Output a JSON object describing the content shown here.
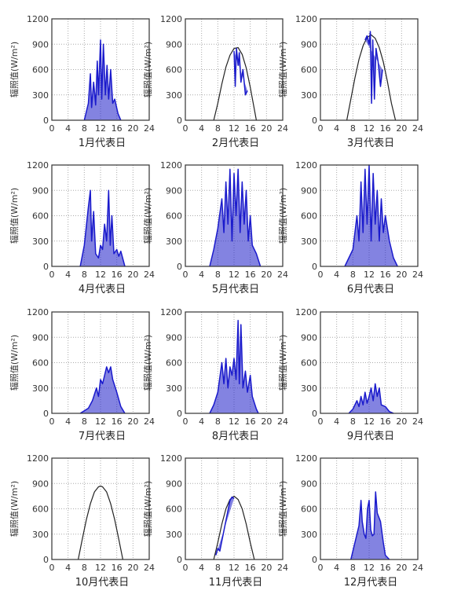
{
  "chart_data": [
    {
      "type": "line",
      "title": "",
      "xlabel": "1月代表日",
      "ylabel": "辐照值(W/m²)",
      "xlim": [
        0,
        24
      ],
      "ylim": [
        0,
        1200
      ],
      "xticks": [
        0,
        4,
        8,
        12,
        16,
        20,
        24
      ],
      "yticks": [
        0,
        300,
        600,
        900,
        1200
      ],
      "grid": true,
      "colors": {
        "measured": "#1a1acc",
        "clear": "#222222"
      },
      "measured": [
        [
          8,
          0
        ],
        [
          9,
          200
        ],
        [
          9.5,
          550
        ],
        [
          9.8,
          150
        ],
        [
          10.3,
          450
        ],
        [
          10.8,
          180
        ],
        [
          11.2,
          700
        ],
        [
          11.5,
          300
        ],
        [
          12,
          950
        ],
        [
          12.3,
          250
        ],
        [
          12.7,
          900
        ],
        [
          13.2,
          300
        ],
        [
          13.6,
          650
        ],
        [
          14,
          250
        ],
        [
          14.5,
          600
        ],
        [
          15,
          200
        ],
        [
          15.5,
          250
        ],
        [
          16.3,
          80
        ],
        [
          17,
          0
        ]
      ],
      "clear": []
    },
    {
      "type": "line",
      "title": "",
      "xlabel": "2月代表日",
      "ylabel": "辐照值(W/m²)",
      "xlim": [
        0,
        24
      ],
      "ylim": [
        0,
        1200
      ],
      "xticks": [
        0,
        4,
        8,
        12,
        16,
        20,
        24
      ],
      "yticks": [
        0,
        300,
        600,
        900,
        1200
      ],
      "grid": true,
      "colors": {
        "measured": "#1a1acc",
        "clear": "#222222"
      },
      "measured": [
        [
          12,
          820
        ],
        [
          12.3,
          400
        ],
        [
          12.6,
          850
        ],
        [
          13,
          650
        ],
        [
          13.3,
          800
        ],
        [
          13.7,
          450
        ],
        [
          14.2,
          600
        ],
        [
          14.8,
          300
        ],
        [
          15.3,
          350
        ]
      ],
      "clear": [
        [
          7,
          0
        ],
        [
          8,
          200
        ],
        [
          9,
          430
        ],
        [
          10,
          630
        ],
        [
          11,
          770
        ],
        [
          12,
          850
        ],
        [
          13,
          860
        ],
        [
          14,
          780
        ],
        [
          15,
          620
        ],
        [
          16,
          390
        ],
        [
          17,
          130
        ],
        [
          17.5,
          0
        ]
      ]
    },
    {
      "type": "line",
      "title": "",
      "xlabel": "3月代表日",
      "ylabel": "辐照值(W/m²)",
      "xlim": [
        0,
        24
      ],
      "ylim": [
        0,
        1200
      ],
      "xticks": [
        0,
        4,
        8,
        12,
        16,
        20,
        24
      ],
      "yticks": [
        0,
        300,
        600,
        900,
        1200
      ],
      "grid": true,
      "colors": {
        "measured": "#1a1acc",
        "clear": "#222222"
      },
      "measured": [
        [
          11,
          950
        ],
        [
          11.5,
          1000
        ],
        [
          12,
          900
        ],
        [
          12.3,
          1050
        ],
        [
          12.6,
          200
        ],
        [
          12.9,
          950
        ],
        [
          13.3,
          250
        ],
        [
          13.7,
          850
        ],
        [
          14.2,
          700
        ],
        [
          14.8,
          400
        ],
        [
          15.3,
          600
        ]
      ],
      "clear": [
        [
          6.5,
          0
        ],
        [
          7.5,
          250
        ],
        [
          8.5,
          500
        ],
        [
          9.5,
          720
        ],
        [
          10.5,
          880
        ],
        [
          11.5,
          980
        ],
        [
          12.5,
          1010
        ],
        [
          13.5,
          970
        ],
        [
          14.5,
          860
        ],
        [
          15.5,
          690
        ],
        [
          16.5,
          460
        ],
        [
          17.5,
          200
        ],
        [
          18.5,
          0
        ]
      ]
    },
    {
      "type": "line",
      "title": "",
      "xlabel": "4月代表日",
      "ylabel": "辐照值(W/m²)",
      "xlim": [
        0,
        24
      ],
      "ylim": [
        0,
        1200
      ],
      "xticks": [
        0,
        4,
        8,
        12,
        16,
        20,
        24
      ],
      "yticks": [
        0,
        300,
        600,
        900,
        1200
      ],
      "grid": true,
      "colors": {
        "measured": "#1a1acc",
        "clear": "#222222"
      },
      "measured": [
        [
          7,
          0
        ],
        [
          8,
          250
        ],
        [
          9,
          700
        ],
        [
          9.5,
          900
        ],
        [
          9.8,
          300
        ],
        [
          10.3,
          650
        ],
        [
          10.8,
          150
        ],
        [
          11.5,
          100
        ],
        [
          12,
          250
        ],
        [
          12.5,
          200
        ],
        [
          13,
          500
        ],
        [
          13.5,
          300
        ],
        [
          14,
          900
        ],
        [
          14.4,
          250
        ],
        [
          14.8,
          600
        ],
        [
          15.3,
          150
        ],
        [
          16,
          200
        ],
        [
          16.5,
          120
        ],
        [
          17,
          180
        ],
        [
          18,
          0
        ]
      ],
      "clear": []
    },
    {
      "type": "line",
      "title": "",
      "xlabel": "5月代表日",
      "ylabel": "辐照值(W/m²)",
      "xlim": [
        0,
        24
      ],
      "ylim": [
        0,
        1200
      ],
      "xticks": [
        0,
        4,
        8,
        12,
        16,
        20,
        24
      ],
      "yticks": [
        0,
        300,
        600,
        900,
        1200
      ],
      "grid": true,
      "colors": {
        "measured": "#1a1acc",
        "clear": "#222222"
      },
      "measured": [
        [
          6,
          0
        ],
        [
          7,
          200
        ],
        [
          8,
          450
        ],
        [
          9,
          800
        ],
        [
          9.5,
          400
        ],
        [
          10,
          1000
        ],
        [
          10.5,
          500
        ],
        [
          11,
          1150
        ],
        [
          11.5,
          300
        ],
        [
          12,
          1100
        ],
        [
          12.5,
          600
        ],
        [
          13,
          1150
        ],
        [
          13.5,
          400
        ],
        [
          14,
          1000
        ],
        [
          14.5,
          500
        ],
        [
          15,
          900
        ],
        [
          15.5,
          300
        ],
        [
          16,
          600
        ],
        [
          16.5,
          250
        ],
        [
          17.5,
          150
        ],
        [
          18.5,
          0
        ]
      ],
      "clear": []
    },
    {
      "type": "line",
      "title": "",
      "xlabel": "6月代表日",
      "ylabel": "辐照值(W/m²)",
      "xlim": [
        0,
        24
      ],
      "ylim": [
        0,
        1200
      ],
      "xticks": [
        0,
        4,
        8,
        12,
        16,
        20,
        24
      ],
      "yticks": [
        0,
        300,
        600,
        900,
        1200
      ],
      "grid": true,
      "colors": {
        "measured": "#1a1acc",
        "clear": "#222222"
      },
      "measured": [
        [
          6,
          0
        ],
        [
          7,
          100
        ],
        [
          8,
          200
        ],
        [
          9,
          600
        ],
        [
          9.5,
          300
        ],
        [
          10,
          1000
        ],
        [
          10.5,
          400
        ],
        [
          11,
          1150
        ],
        [
          11.5,
          500
        ],
        [
          12,
          1200
        ],
        [
          12.5,
          300
        ],
        [
          13,
          1100
        ],
        [
          13.5,
          500
        ],
        [
          14,
          900
        ],
        [
          14.5,
          300
        ],
        [
          15,
          800
        ],
        [
          15.5,
          400
        ],
        [
          16,
          600
        ],
        [
          17,
          300
        ],
        [
          18,
          100
        ],
        [
          19,
          0
        ]
      ],
      "clear": []
    },
    {
      "type": "line",
      "title": "",
      "xlabel": "7月代表日",
      "ylabel": "辐照值(W/m²)",
      "xlim": [
        0,
        24
      ],
      "ylim": [
        0,
        1200
      ],
      "xticks": [
        0,
        4,
        8,
        12,
        16,
        20,
        24
      ],
      "yticks": [
        0,
        300,
        600,
        900,
        1200
      ],
      "grid": true,
      "colors": {
        "measured": "#1a1acc",
        "clear": "#222222"
      },
      "measured": [
        [
          7,
          0
        ],
        [
          8,
          30
        ],
        [
          9,
          60
        ],
        [
          10,
          150
        ],
        [
          11,
          300
        ],
        [
          11.5,
          200
        ],
        [
          12,
          400
        ],
        [
          12.5,
          350
        ],
        [
          13,
          450
        ],
        [
          13.5,
          550
        ],
        [
          14,
          480
        ],
        [
          14.5,
          550
        ],
        [
          15,
          400
        ],
        [
          16,
          250
        ],
        [
          17,
          80
        ],
        [
          18,
          0
        ]
      ],
      "clear": []
    },
    {
      "type": "line",
      "title": "",
      "xlabel": "8月代表日",
      "ylabel": "辐照值(W/m²)",
      "xlim": [
        0,
        24
      ],
      "ylim": [
        0,
        1200
      ],
      "xticks": [
        0,
        4,
        8,
        12,
        16,
        20,
        24
      ],
      "yticks": [
        0,
        300,
        600,
        900,
        1200
      ],
      "grid": true,
      "colors": {
        "measured": "#1a1acc",
        "clear": "#222222"
      },
      "measured": [
        [
          6,
          0
        ],
        [
          7,
          100
        ],
        [
          8,
          250
        ],
        [
          9,
          600
        ],
        [
          9.5,
          350
        ],
        [
          10,
          650
        ],
        [
          10.5,
          300
        ],
        [
          11,
          550
        ],
        [
          11.5,
          450
        ],
        [
          12,
          650
        ],
        [
          12.5,
          400
        ],
        [
          13,
          1100
        ],
        [
          13.3,
          350
        ],
        [
          13.7,
          1050
        ],
        [
          14.2,
          300
        ],
        [
          14.8,
          500
        ],
        [
          15.3,
          250
        ],
        [
          16,
          450
        ],
        [
          16.5,
          200
        ],
        [
          17.5,
          50
        ],
        [
          18,
          0
        ]
      ],
      "clear": []
    },
    {
      "type": "line",
      "title": "",
      "xlabel": "9月代表日",
      "ylabel": "辐照值(W/m²)",
      "xlim": [
        0,
        24
      ],
      "ylim": [
        0,
        1200
      ],
      "xticks": [
        0,
        4,
        8,
        12,
        16,
        20,
        24
      ],
      "yticks": [
        0,
        300,
        600,
        900,
        1200
      ],
      "grid": true,
      "colors": {
        "measured": "#1a1acc",
        "clear": "#222222"
      },
      "measured": [
        [
          7,
          0
        ],
        [
          8,
          50
        ],
        [
          9,
          150
        ],
        [
          9.5,
          80
        ],
        [
          10,
          200
        ],
        [
          10.5,
          100
        ],
        [
          11,
          250
        ],
        [
          11.5,
          120
        ],
        [
          12,
          200
        ],
        [
          12.5,
          300
        ],
        [
          13,
          150
        ],
        [
          13.5,
          350
        ],
        [
          14,
          200
        ],
        [
          14.5,
          300
        ],
        [
          15,
          100
        ],
        [
          16,
          80
        ],
        [
          17,
          20
        ],
        [
          18,
          0
        ]
      ],
      "clear": []
    },
    {
      "type": "line",
      "title": "",
      "xlabel": "10月代表日",
      "ylabel": "辐照值(W/m²)",
      "xlim": [
        0,
        24
      ],
      "ylim": [
        0,
        1200
      ],
      "xticks": [
        0,
        4,
        8,
        12,
        16,
        20,
        24
      ],
      "yticks": [
        0,
        300,
        600,
        900,
        1200
      ],
      "grid": true,
      "colors": {
        "measured": "#1a1acc",
        "clear": "#222222"
      },
      "measured": [],
      "clear": [
        [
          6.5,
          0
        ],
        [
          7.5,
          240
        ],
        [
          8.5,
          470
        ],
        [
          9.5,
          660
        ],
        [
          10.5,
          800
        ],
        [
          11.5,
          860
        ],
        [
          12,
          870
        ],
        [
          12.5,
          860
        ],
        [
          13.5,
          800
        ],
        [
          14.5,
          660
        ],
        [
          15.5,
          470
        ],
        [
          16.5,
          240
        ],
        [
          17.5,
          0
        ]
      ]
    },
    {
      "type": "line",
      "title": "",
      "xlabel": "11月代表日",
      "ylabel": "辐照值(W/m²)",
      "xlim": [
        0,
        24
      ],
      "ylim": [
        0,
        1200
      ],
      "xticks": [
        0,
        4,
        8,
        12,
        16,
        20,
        24
      ],
      "yticks": [
        0,
        300,
        600,
        900,
        1200
      ],
      "grid": true,
      "colors": {
        "measured": "#1a1acc",
        "clear": "#222222"
      },
      "measured": [
        [
          7.5,
          50
        ],
        [
          8,
          130
        ],
        [
          8.5,
          100
        ],
        [
          11,
          700
        ],
        [
          11.5,
          740
        ],
        [
          12,
          720
        ]
      ],
      "clear": [
        [
          7,
          0
        ],
        [
          8,
          200
        ],
        [
          9,
          420
        ],
        [
          10,
          600
        ],
        [
          11,
          710
        ],
        [
          12,
          750
        ],
        [
          13,
          710
        ],
        [
          14,
          600
        ],
        [
          15,
          420
        ],
        [
          16,
          200
        ],
        [
          17,
          0
        ]
      ]
    },
    {
      "type": "line",
      "title": "",
      "xlabel": "12月代表日",
      "ylabel": "辐照值(W/m²)",
      "xlim": [
        0,
        24
      ],
      "ylim": [
        0,
        1200
      ],
      "xticks": [
        0,
        4,
        8,
        12,
        16,
        20,
        24
      ],
      "yticks": [
        0,
        300,
        600,
        900,
        1200
      ],
      "grid": true,
      "colors": {
        "measured": "#1a1acc",
        "clear": "#222222"
      },
      "measured": [
        [
          7.5,
          0
        ],
        [
          8.5,
          200
        ],
        [
          9.5,
          400
        ],
        [
          10,
          700
        ],
        [
          10.3,
          450
        ],
        [
          10.8,
          300
        ],
        [
          11.2,
          250
        ],
        [
          11.6,
          600
        ],
        [
          12,
          700
        ],
        [
          12.4,
          350
        ],
        [
          12.8,
          280
        ],
        [
          13.2,
          300
        ],
        [
          13.6,
          800
        ],
        [
          14,
          550
        ],
        [
          14.8,
          450
        ],
        [
          15.5,
          200
        ],
        [
          16,
          50
        ],
        [
          17,
          0
        ]
      ],
      "clear": []
    }
  ]
}
